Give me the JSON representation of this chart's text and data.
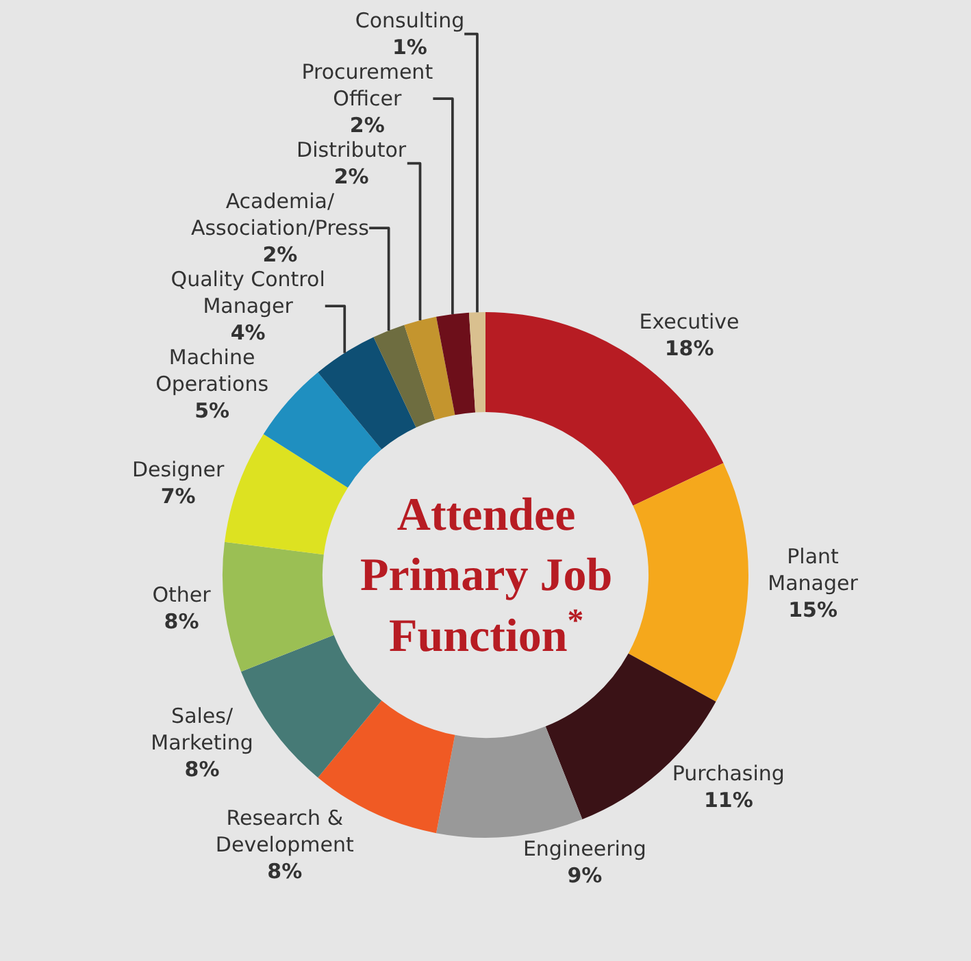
{
  "chart_data": {
    "type": "donut",
    "title": "Attendee Primary Job Function$^{*}$",
    "categories": [
      "Executive",
      "Plant\nManager",
      "Purchasing",
      "Engineering",
      "Research &\nDevelopment",
      "Sales/\nMarketing",
      "Other",
      "Designer",
      "Machine\nOperations",
      "Quality Control\nManager",
      "Academia/\nAssociation/Press",
      "Distributor",
      "Procurement\nOfficer",
      "Consulting"
    ],
    "values": [
      18,
      15,
      11,
      9,
      8,
      8,
      8,
      7,
      5,
      4,
      2,
      2,
      2,
      1
    ],
    "value_labels": [
      "18%",
      "15%",
      "11%",
      "9%",
      "8%",
      "8%",
      "8%",
      "7%",
      "5%",
      "4%",
      "2%",
      "2%",
      "2%",
      "1%"
    ],
    "colors": [
      "#b71c23",
      "#f5a81c",
      "#3a1216",
      "#999999",
      "#f05a24",
      "#467a76",
      "#9bbf54",
      "#dde221",
      "#1f8fc0",
      "#0e4f74",
      "#6e6d40",
      "#c4952e",
      "#6d0f1a",
      "#d9c08f"
    ],
    "legend": false
  }
}
